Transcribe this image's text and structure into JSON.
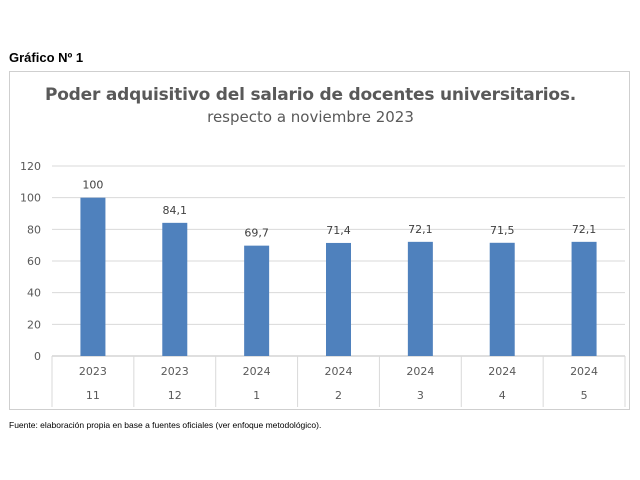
{
  "figure_label": "Gráfico Nº 1",
  "source_note": "Fuente: elaboración propia en base a fuentes oficiales (ver enfoque metodológico).",
  "chart_data": {
    "type": "bar",
    "title": "Poder adquisitivo del salario de docentes universitarios.",
    "subtitle": "respecto a noviembre 2023",
    "categories": [
      {
        "year": "2023",
        "month": "11"
      },
      {
        "year": "2023",
        "month": "12"
      },
      {
        "year": "2024",
        "month": "1"
      },
      {
        "year": "2024",
        "month": "2"
      },
      {
        "year": "2024",
        "month": "3"
      },
      {
        "year": "2024",
        "month": "4"
      },
      {
        "year": "2024",
        "month": "5"
      }
    ],
    "values": [
      100,
      84.1,
      69.7,
      71.4,
      72.1,
      71.5,
      72.1
    ],
    "data_labels": [
      "100",
      "84,1",
      "69,7",
      "71,4",
      "72,1",
      "71,5",
      "72,1"
    ],
    "ylim": [
      0,
      120
    ],
    "yticks": [
      0,
      20,
      40,
      60,
      80,
      100,
      120
    ],
    "xlabel": "",
    "ylabel": "",
    "grid": true,
    "legend": "none",
    "bar_color": "#4F81BD",
    "grid_color": "#d9d9d9",
    "text_color": "#595959"
  }
}
